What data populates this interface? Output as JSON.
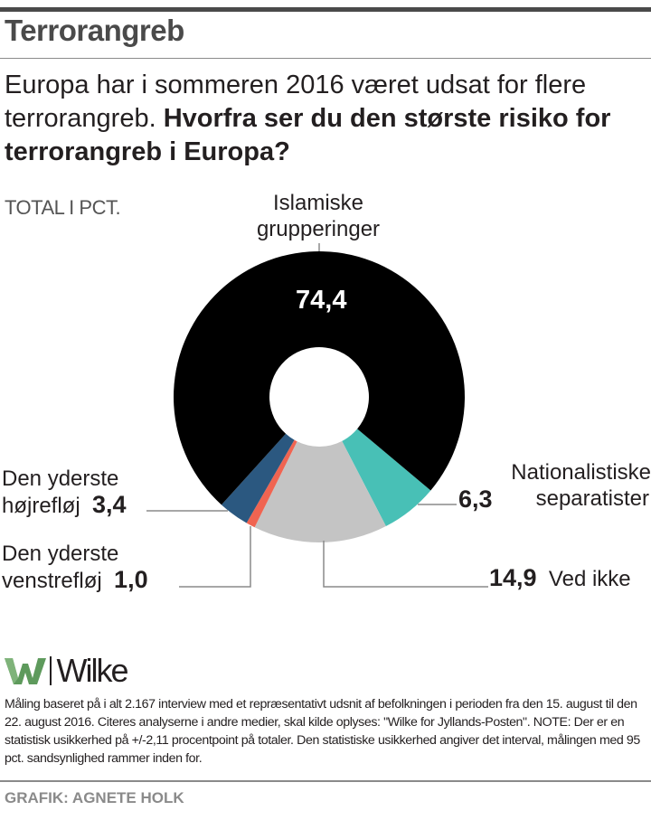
{
  "header": {
    "title": "Terrorangreb",
    "question_intro": "Europa har i sommeren 2016 været udsat for flere terrorangreb. ",
    "question_bold": "Hvorfra ser du den største risiko for terrorangreb i Europa?"
  },
  "unit_label": "TOTAL I PCT.",
  "chart_data": {
    "type": "pie",
    "variant": "donut",
    "title": "Hvorfra ser du den største risiko for terrorangreb i Europa?",
    "unit": "TOTAL I PCT.",
    "slices": [
      {
        "key": "islamiske",
        "label": "Islamiske grupperinger",
        "label_lines": [
          "Islamiske",
          "grupperinger"
        ],
        "value": 74.4,
        "value_text": "74,4",
        "color": "#000000"
      },
      {
        "key": "nationalistiske",
        "label": "Nationalistiske separatister",
        "label_lines": [
          "Nationalistiske",
          "separatister"
        ],
        "value": 6.3,
        "value_text": "6,3",
        "color": "#48c0b6"
      },
      {
        "key": "vedikke",
        "label": "Ved ikke",
        "label_lines": [
          "Ved ikke"
        ],
        "value": 14.9,
        "value_text": "14,9",
        "color": "#c4c4c4"
      },
      {
        "key": "venstre",
        "label": "Den yderste venstrefløj",
        "label_lines": [
          "Den yderste",
          "venstrefløj"
        ],
        "value": 1.0,
        "value_text": "1,0",
        "color": "#f06451"
      },
      {
        "key": "hojre",
        "label": "Den yderste højrefløj",
        "label_lines": [
          "Den yderste",
          "højrefløj"
        ],
        "value": 3.4,
        "value_text": "3,4",
        "color": "#2b5880"
      }
    ]
  },
  "logo": {
    "name": "Wilke",
    "mark_color": "#5e9a5c"
  },
  "footnote": "Måling baseret på i alt 2.167 interview med et repræsentativt udsnit af befolkningen i perioden fra den 15. august til den 22. august 2016. Citeres analyserne i andre medier, skal kilde oplyses: \"Wilke for Jyllands-Posten\".  NOTE: Der er en statistisk usikkerhed på +/-2,11 procentpoint på totaler. Den statistiske usikkerhed angiver det interval, målingen med 95 pct. sandsynlighed rammer inden for.",
  "credit": "GRAFIK: AGNETE HOLK"
}
